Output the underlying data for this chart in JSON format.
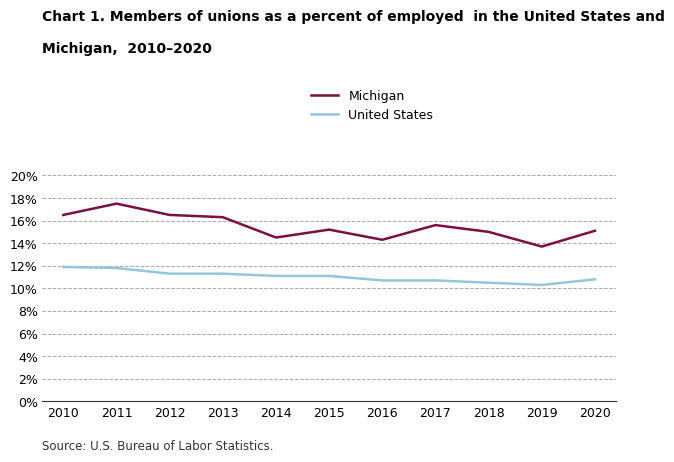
{
  "years": [
    2010,
    2011,
    2012,
    2013,
    2014,
    2015,
    2016,
    2017,
    2018,
    2019,
    2020
  ],
  "michigan": [
    16.5,
    17.5,
    16.5,
    16.3,
    14.5,
    15.2,
    14.3,
    15.6,
    15.0,
    13.7,
    15.1
  ],
  "us": [
    11.9,
    11.8,
    11.3,
    11.3,
    11.1,
    11.1,
    10.7,
    10.7,
    10.5,
    10.3,
    10.8
  ],
  "michigan_color": "#7B1040",
  "us_color": "#92C5DE",
  "michigan_label": "Michigan",
  "us_label": "United States",
  "title_line1": "Chart 1. Members of unions as a percent of employed  in the United States and",
  "title_line2": "Michigan,  2010–2020",
  "source": "Source: U.S. Bureau of Labor Statistics.",
  "ylim": [
    0,
    20
  ],
  "yticks": [
    0,
    2,
    4,
    6,
    8,
    10,
    12,
    14,
    16,
    18,
    20
  ],
  "line_width": 1.8,
  "grid_color": "#AAAAAA",
  "background_color": "#FFFFFF"
}
